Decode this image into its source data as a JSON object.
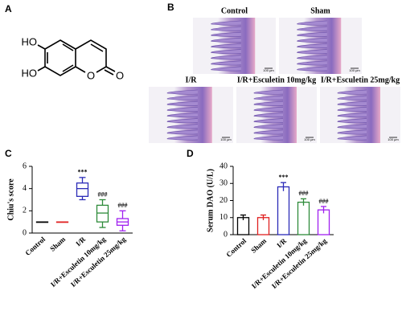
{
  "panel_labels": [
    "A",
    "B",
    "C",
    "D"
  ],
  "molecule": {
    "atoms": [
      "HO",
      "HO",
      "O",
      "O"
    ]
  },
  "images": [
    {
      "title": "Control",
      "scale": "100 μm"
    },
    {
      "title": "Sham",
      "scale": "100 μm"
    },
    {
      "title": "I/R",
      "scale": "100 μm"
    },
    {
      "title": "I/R+Esculetin 10mg/kg",
      "scale": "100 μm"
    },
    {
      "title": "I/R+Esculetin 25mg/kg",
      "scale": "100 μm"
    }
  ],
  "chart_data": [
    {
      "type": "box",
      "y_label": "Chiu's score",
      "categories": [
        "Control",
        "Sham",
        "I/R",
        "I/R+Esculetin 10mg/kg",
        "I/R+Esculetin 25mg/kg"
      ],
      "min": [
        1,
        1,
        3,
        0.5,
        0.2
      ],
      "q1": [
        1,
        1,
        3.3,
        1,
        0.7
      ],
      "median": [
        1,
        1,
        4,
        1.8,
        1
      ],
      "q3": [
        1,
        1,
        4.5,
        2.5,
        1.3
      ],
      "max": [
        1,
        1,
        5,
        3,
        2
      ],
      "colors": [
        "#000000",
        "#e02020",
        "#2b2bb8",
        "#2e8b3a",
        "#a020f0"
      ],
      "annotations": [
        null,
        null,
        "***",
        "###",
        "###"
      ],
      "ylim": [
        0,
        6
      ],
      "yticks": [
        0,
        2,
        4,
        6
      ]
    },
    {
      "type": "bar",
      "y_label": "Serum DAO (U/L)",
      "categories": [
        "Control",
        "Sham",
        "I/R",
        "I/R+Esculetin 10mg/kg",
        "I/R+Esculetin 25mg/kg"
      ],
      "values": [
        10,
        10,
        28,
        19,
        14.5
      ],
      "errors": [
        1.5,
        1.5,
        2.5,
        2,
        2
      ],
      "colors": [
        "#000000",
        "#e02020",
        "#2b2bb8",
        "#2e8b3a",
        "#a020f0"
      ],
      "annotations": [
        null,
        null,
        "***",
        "###",
        "###"
      ],
      "ylim": [
        0,
        40
      ],
      "yticks": [
        0,
        10,
        20,
        30,
        40
      ]
    }
  ]
}
